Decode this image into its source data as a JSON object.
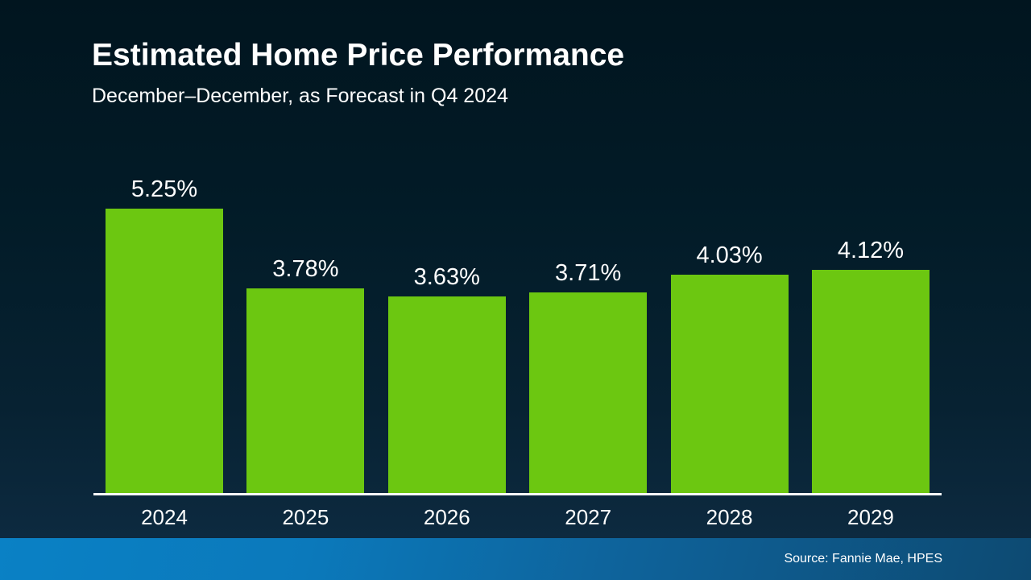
{
  "slide": {
    "title": "Estimated Home Price Performance",
    "subtitle": "December–December, as Forecast in Q4 2024",
    "source": "Source: Fannie Mae, HPES"
  },
  "colors": {
    "background_top": "#01151f",
    "background_bottom": "#0d2a40",
    "bar_green": "#6CC711",
    "axis_line": "#ffffff",
    "footer_gradient_left": "#0a81c5",
    "footer_gradient_right": "#0d4a72",
    "text": "#ffffff"
  },
  "chart_data": {
    "type": "bar",
    "title": "Estimated Home Price Performance",
    "subtitle": "December–December, as Forecast in Q4 2024",
    "categories": [
      "2024",
      "2025",
      "2026",
      "2027",
      "2028",
      "2029"
    ],
    "values": [
      5.25,
      3.78,
      3.63,
      3.71,
      4.03,
      4.12
    ],
    "value_labels": [
      "5.25%",
      "3.78%",
      "3.63%",
      "3.71%",
      "4.03%",
      "4.12%"
    ],
    "xlabel": "",
    "ylabel": "",
    "ylim": [
      0,
      5.6
    ],
    "grid": false,
    "legend": false,
    "bar_color": "#6CC711",
    "annotation": "Source: Fannie Mae, HPES"
  }
}
